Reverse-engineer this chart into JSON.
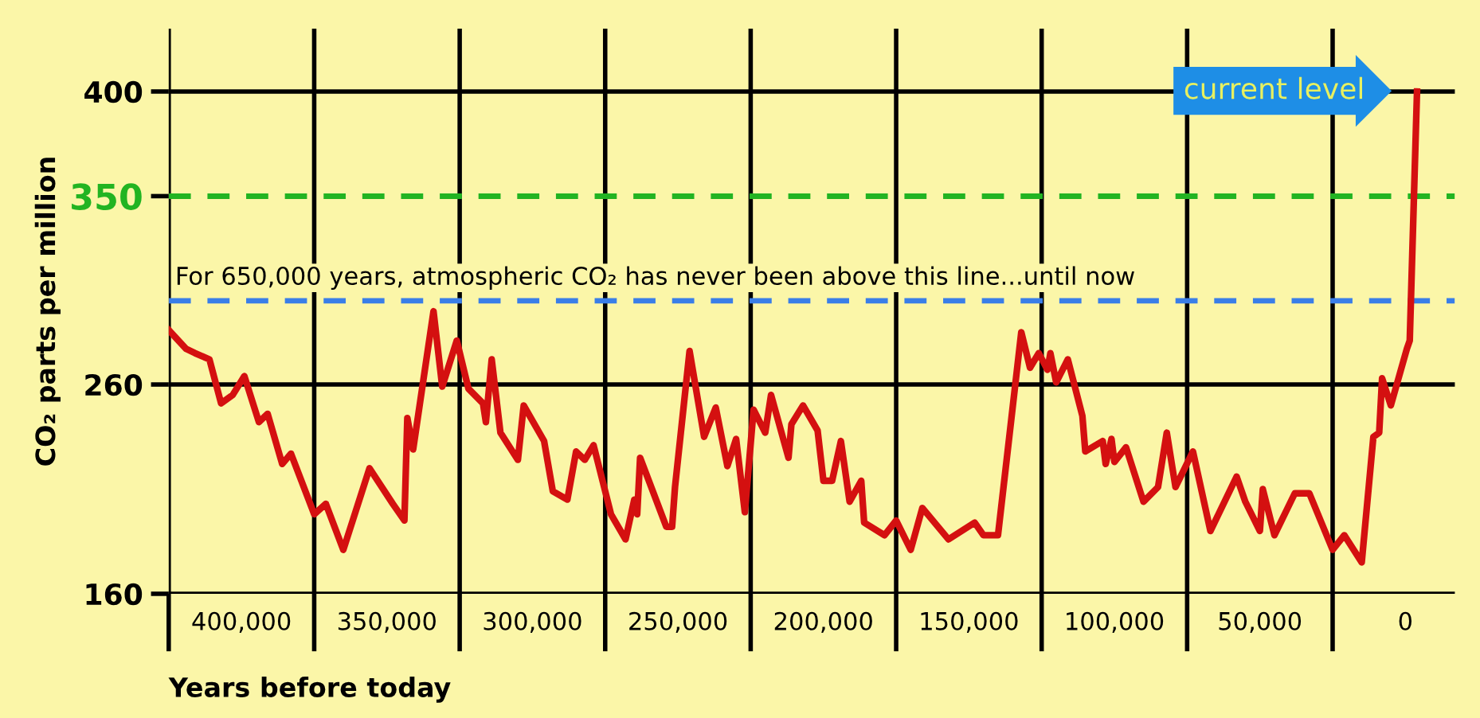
{
  "chart_data": {
    "type": "line",
    "xlabel": "Years before today",
    "ylabel": "CO₂ parts per million",
    "xlim": [
      425000,
      -17000
    ],
    "xticks": [
      {
        "value": 425000,
        "label": null
      },
      {
        "value": 400000,
        "label": "400,000"
      },
      {
        "value": 375000,
        "label": null
      },
      {
        "value": 350000,
        "label": "350,000"
      },
      {
        "value": 325000,
        "label": null
      },
      {
        "value": 300000,
        "label": "300,000"
      },
      {
        "value": 275000,
        "label": null
      },
      {
        "value": 250000,
        "label": "250,000"
      },
      {
        "value": 225000,
        "label": null
      },
      {
        "value": 200000,
        "label": "200,000"
      },
      {
        "value": 175000,
        "label": null
      },
      {
        "value": 150000,
        "label": "150,000"
      },
      {
        "value": 125000,
        "label": null
      },
      {
        "value": 100000,
        "label": "100,000"
      },
      {
        "value": 75000,
        "label": null
      },
      {
        "value": 50000,
        "label": "50,000"
      },
      {
        "value": 25000,
        "label": null
      },
      {
        "value": 0,
        "label": "0"
      }
    ],
    "ylim": [
      160,
      430
    ],
    "yticks": [
      160,
      260,
      350,
      400
    ],
    "grid": true,
    "line_style": "solid",
    "marker": "none",
    "ref_lines": [
      {
        "axis": "y",
        "value": 350,
        "color": "#22b422",
        "line_style": "dashed"
      },
      {
        "axis": "y",
        "value": 300,
        "label": "For 650,000 years, atmospheric CO₂ has never been above this line...until now",
        "color": "#3a7ee8",
        "line_style": "dashed"
      }
    ],
    "annotations": [
      "current level"
    ],
    "series": [
      {
        "color": "#d41010",
        "x": [
          425000,
          419000,
          416000,
          411000,
          407000,
          403000,
          399000,
          394000,
          391000,
          386000,
          383000,
          375000,
          371000,
          365000,
          356000,
          348000,
          344000,
          343000,
          341000,
          334000,
          331000,
          326000,
          322000,
          317000,
          316000,
          314000,
          311000,
          305000,
          303000,
          296000,
          293000,
          288000,
          285000,
          282000,
          279000,
          273000,
          268000,
          265000,
          264000,
          263000,
          254000,
          252000,
          251000,
          246000,
          241000,
          237000,
          233000,
          230000,
          227000,
          224000,
          220000,
          218000,
          212000,
          211000,
          207000,
          202000,
          200000,
          197000,
          194000,
          191000,
          187000,
          186000,
          179000,
          175000,
          170000,
          166000,
          157000,
          148000,
          145000,
          140000,
          132000,
          129000,
          126000,
          123000,
          122000,
          120000,
          116000,
          111000,
          110000,
          104000,
          103000,
          101000,
          100000,
          96000,
          90000,
          85000,
          82000,
          79000,
          73000,
          67000,
          58000,
          55000,
          50000,
          49000,
          45000,
          38000,
          33000,
          25000,
          21000,
          15000,
          11000,
          9000,
          8000,
          5000,
          -500,
          -1500,
          -4000
        ],
        "values": [
          286,
          277,
          275,
          272,
          251,
          255,
          264,
          242,
          246,
          222,
          227,
          198,
          203,
          181,
          220,
          203,
          195,
          244,
          229,
          295,
          259,
          281,
          258,
          251,
          242,
          272,
          237,
          224,
          250,
          233,
          209,
          205,
          228,
          224,
          231,
          198,
          186,
          205,
          198,
          225,
          192,
          192,
          211,
          276,
          235,
          249,
          221,
          234,
          199,
          248,
          237,
          255,
          225,
          241,
          250,
          238,
          214,
          214,
          233,
          204,
          214,
          194,
          188,
          195,
          181,
          201,
          186,
          194,
          188,
          188,
          285,
          268,
          275,
          267,
          275,
          261,
          272,
          245,
          228,
          233,
          222,
          234,
          223,
          230,
          204,
          211,
          237,
          211,
          228,
          190,
          216,
          204,
          190,
          210,
          188,
          208,
          208,
          181,
          188,
          175,
          235,
          237,
          263,
          250,
          277,
          281,
          400
        ]
      }
    ]
  }
}
